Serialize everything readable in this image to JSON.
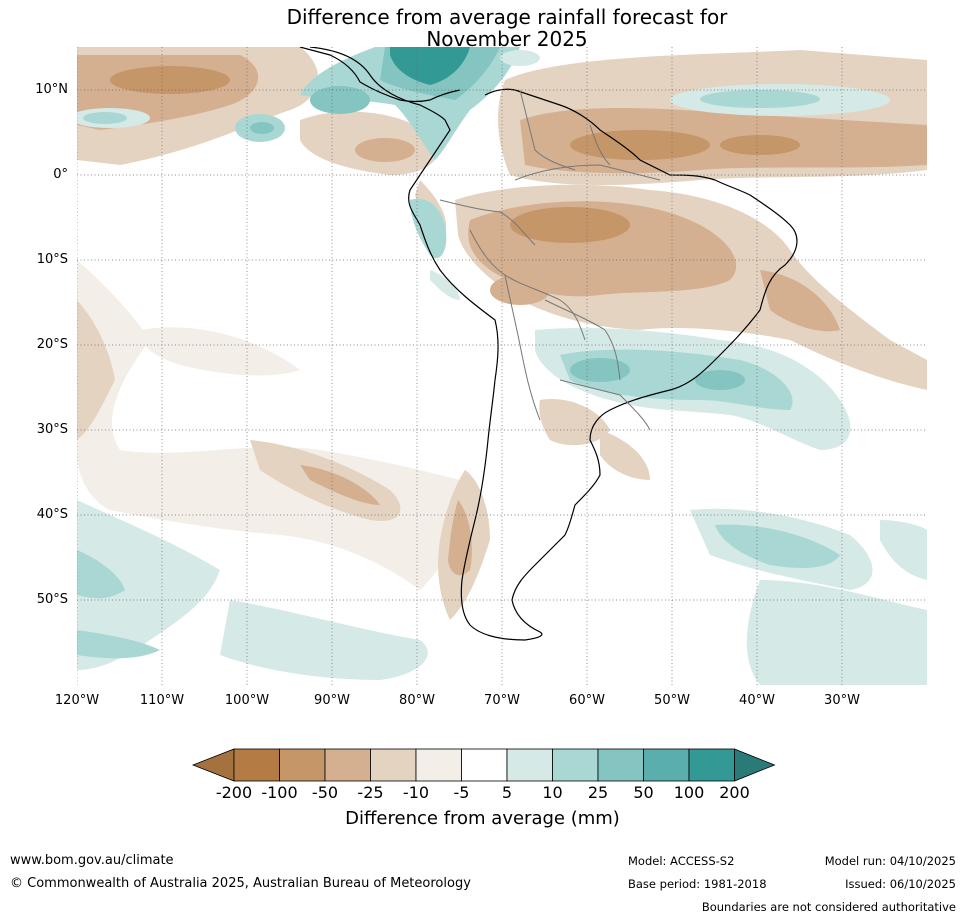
{
  "title": {
    "line1": "Difference from average rainfall forecast for",
    "line2": "November 2025"
  },
  "map": {
    "lat_labels": [
      "10°N",
      "0°",
      "10°S",
      "20°S",
      "30°S",
      "40°S",
      "50°S"
    ],
    "lon_labels": [
      "120°W",
      "110°W",
      "100°W",
      "90°W",
      "80°W",
      "70°W",
      "60°W",
      "50°W",
      "40°W",
      "30°W"
    ],
    "region": "South America"
  },
  "legend": {
    "title": "Difference from average (mm)",
    "ticks": [
      "-200",
      "-100",
      "-50",
      "-25",
      "-10",
      "-5",
      "5",
      "10",
      "25",
      "50",
      "100",
      "200"
    ],
    "colors": [
      "#a4723e",
      "#b47c44",
      "#c49668",
      "#d4b090",
      "#e5d3c2",
      "#f3eee8",
      "#ffffff",
      "#d5e9e7",
      "#a9d7d4",
      "#84c4c1",
      "#5aaeab",
      "#329995",
      "#2a7a78"
    ]
  },
  "footer": {
    "website": "www.bom.gov.au/climate",
    "copyright": "© Commonwealth of Australia 2025, Australian Bureau of Meteorology",
    "model": "Model: ACCESS-S2",
    "base_period": "Base period: 1981-2018",
    "model_run": "Model run: 04/10/2025",
    "issued": "Issued: 06/10/2025",
    "boundaries": "Boundaries are not considered authoritative"
  }
}
